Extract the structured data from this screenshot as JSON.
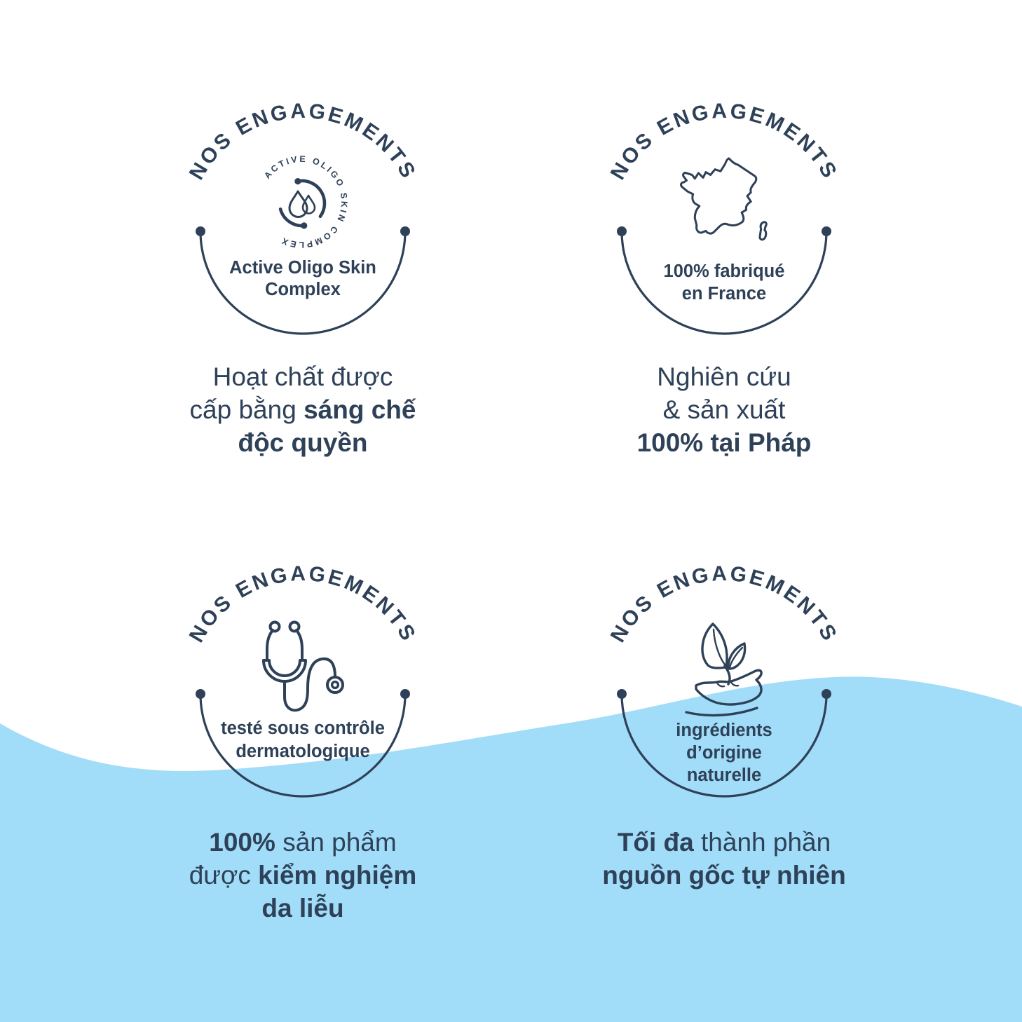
{
  "colors": {
    "navy": "#2e4158",
    "wave_blue": "#a1dcf8",
    "background": "#ffffff"
  },
  "badges": [
    {
      "id": "active-oligo-complex",
      "arc_label": "NOS ENGAGEMENTS",
      "ring_text": "ACTIVE OLIGO SKIN COMPLEX",
      "icon": "droplet-complex-icon",
      "caption_lines": [
        "Active Oligo Skin",
        "Complex"
      ],
      "description_lines": [
        [
          {
            "text": "Hoạt chất được",
            "bold": false
          }
        ],
        [
          {
            "text": "cấp bằng ",
            "bold": false
          },
          {
            "text": "sáng chế",
            "bold": true
          }
        ],
        [
          {
            "text": "độc quyền",
            "bold": true
          }
        ]
      ]
    },
    {
      "id": "made-in-france",
      "arc_label": "NOS ENGAGEMENTS",
      "icon": "france-map-icon",
      "caption_lines": [
        "100% fabriqué",
        "en France"
      ],
      "description_lines": [
        [
          {
            "text": "Nghiên cứu",
            "bold": false
          }
        ],
        [
          {
            "text": "& sản xuất",
            "bold": false
          }
        ],
        [
          {
            "text": "100% tại Pháp",
            "bold": true
          }
        ]
      ]
    },
    {
      "id": "dermatologically-tested",
      "arc_label": "NOS ENGAGEMENTS",
      "icon": "stethoscope-icon",
      "caption_lines": [
        "testé sous contrôle",
        "dermatologique"
      ],
      "description_lines": [
        [
          {
            "text": "100%",
            "bold": true
          },
          {
            "text": " sản phẩm",
            "bold": false
          }
        ],
        [
          {
            "text": "được ",
            "bold": false
          },
          {
            "text": "kiểm nghiệm",
            "bold": true
          }
        ],
        [
          {
            "text": "da liễu",
            "bold": true
          }
        ]
      ]
    },
    {
      "id": "natural-ingredients",
      "arc_label": "NOS ENGAGEMENTS",
      "icon": "hand-leaves-icon",
      "caption_lines": [
        "ingrédients",
        "d’origine",
        "naturelle"
      ],
      "description_lines": [
        [
          {
            "text": "Tối đa",
            "bold": true
          },
          {
            "text": " thành phần",
            "bold": false
          }
        ],
        [
          {
            "text": "nguồn gốc tự nhiên",
            "bold": true
          }
        ]
      ]
    }
  ]
}
